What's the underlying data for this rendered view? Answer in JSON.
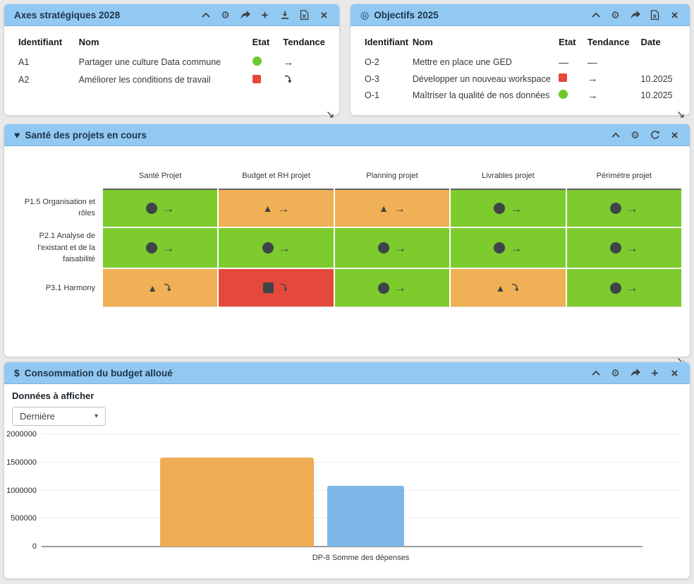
{
  "colors": {
    "header_bg": "#92c9f2",
    "green": "#7dcb2d",
    "orange": "#f0b055",
    "red": "#e5493c",
    "bar_orange": "#f0ac55",
    "bar_blue": "#7db7e8",
    "shape_dark": "#3f4449"
  },
  "icons": {
    "settings": "⚙",
    "add": "+",
    "close": "×",
    "target": "◎",
    "heart": "♥",
    "dollar": "$",
    "caret": "▾",
    "trend_stable": "→",
    "dash": "—",
    "triangle": "▲"
  },
  "axes_panel": {
    "title": "Axes stratégiques 2028",
    "columns": [
      "Identifiant",
      "Nom",
      "Etat",
      "Tendance"
    ],
    "rows": [
      {
        "id": "A1",
        "name": "Partager une culture Data commune",
        "state": "green-circle",
        "trend": "stable"
      },
      {
        "id": "A2",
        "name": "Améliorer les conditions de travail",
        "state": "red-square",
        "trend": "down"
      }
    ]
  },
  "objectifs_panel": {
    "title": "Objectifs 2025",
    "columns": [
      "Identifiant",
      "Nom",
      "Etat",
      "Tendance",
      "Date"
    ],
    "rows": [
      {
        "id": "O-2",
        "name": "Mettre en place une GED",
        "state": "dash",
        "trend": "dash",
        "date": ""
      },
      {
        "id": "O-3",
        "name": "Développer un nouveau workspace",
        "state": "red-square",
        "trend": "stable",
        "date": "10.2025"
      },
      {
        "id": "O-1",
        "name": "Maîtriser la qualité de nos données",
        "state": "green-circle",
        "trend": "stable",
        "date": "10.2025"
      }
    ]
  },
  "sante_panel": {
    "title": "Santé des projets en cours",
    "columns": [
      "Santé Projet",
      "Budget et RH projet",
      "Planning projet",
      "Livrables projet",
      "Périmètre projet"
    ],
    "rows": [
      {
        "label": "P1.5 Organisation et rôles",
        "cells": [
          {
            "color": "green",
            "shape": "circle",
            "trend": "stable"
          },
          {
            "color": "orange",
            "shape": "triangle",
            "trend": "stable"
          },
          {
            "color": "orange",
            "shape": "triangle",
            "trend": "stable"
          },
          {
            "color": "green",
            "shape": "circle",
            "trend": "stable"
          },
          {
            "color": "green",
            "shape": "circle",
            "trend": "stable"
          }
        ]
      },
      {
        "label": "P2.1 Analyse de l'existant et de la faisabilité",
        "cells": [
          {
            "color": "green",
            "shape": "circle",
            "trend": "stable"
          },
          {
            "color": "green",
            "shape": "circle",
            "trend": "stable"
          },
          {
            "color": "green",
            "shape": "circle",
            "trend": "stable"
          },
          {
            "color": "green",
            "shape": "circle",
            "trend": "stable"
          },
          {
            "color": "green",
            "shape": "circle",
            "trend": "stable"
          }
        ]
      },
      {
        "label": "P3.1 Harmony",
        "cells": [
          {
            "color": "orange",
            "shape": "triangle",
            "trend": "down"
          },
          {
            "color": "red",
            "shape": "square",
            "trend": "down"
          },
          {
            "color": "green",
            "shape": "circle",
            "trend": "stable"
          },
          {
            "color": "orange",
            "shape": "triangle",
            "trend": "down"
          },
          {
            "color": "green",
            "shape": "circle",
            "trend": "stable"
          }
        ]
      }
    ]
  },
  "budget_panel": {
    "title": "Consommation du budget alloué",
    "filter_label": "Données à afficher",
    "filter_value": "Dernière",
    "chart_data": {
      "type": "bar",
      "categories": [
        "DP-8 Somme des dépenses"
      ],
      "series": [
        {
          "color": "#f0ac55",
          "values": [
            1590000
          ]
        },
        {
          "color": "#7db7e8",
          "values": [
            1080000
          ]
        }
      ],
      "ylim": [
        0,
        2000000
      ],
      "yticks": [
        0,
        500000,
        1000000,
        1500000,
        2000000
      ],
      "xlabel": "DP-8 Somme des dépenses",
      "grid": true,
      "legend": false
    }
  }
}
